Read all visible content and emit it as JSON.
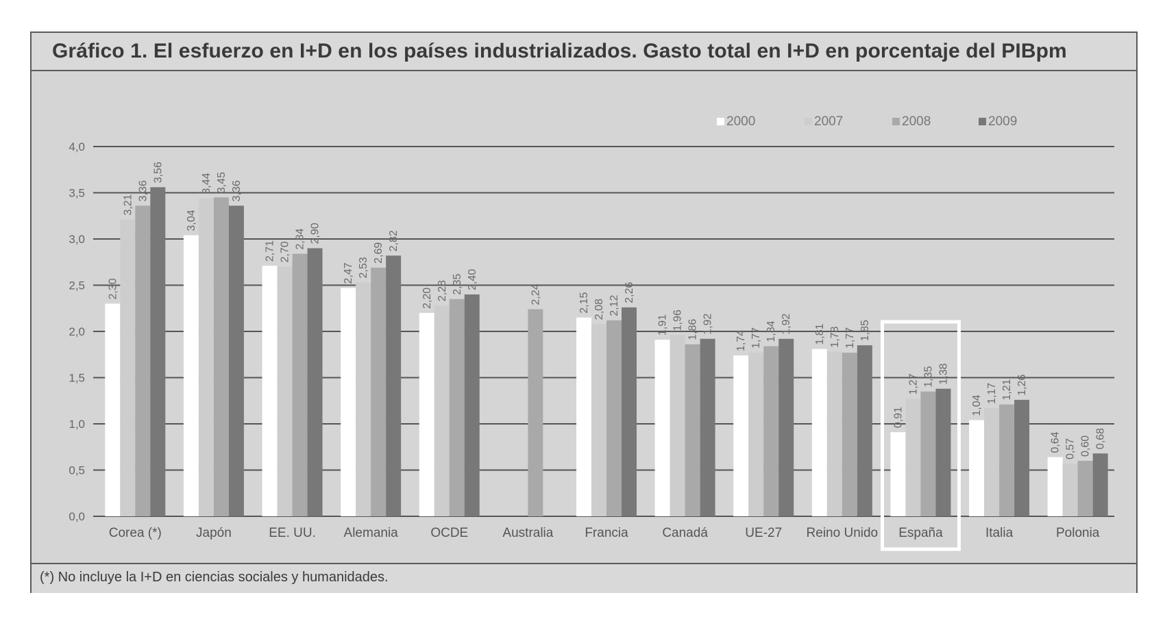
{
  "title": "Gráfico 1. El esfuerzo en I+D en los países industrializados. Gasto total en I+D en porcentaje del PIBpm",
  "footnote": "(*) No incluye la I+D en ciencias sociales y humanidades.",
  "chart_data": {
    "type": "bar",
    "title": "Gráfico 1. El esfuerzo en I+D en los países industrializados. Gasto total en I+D en porcentaje del PIBpm",
    "xlabel": "",
    "ylabel": "",
    "ylim": [
      0,
      4
    ],
    "yticks": [
      "0,0",
      "0,5",
      "1,0",
      "1,5",
      "2,0",
      "2,5",
      "3,0",
      "3,5",
      "4,0"
    ],
    "grid": true,
    "legend": "top-right",
    "categories": [
      "Corea (*)",
      "Japón",
      "EE. UU.",
      "Alemania",
      "OCDE",
      "Australia",
      "Francia",
      "Canadá",
      "UE-27",
      "Reino Unido",
      "España",
      "Italia",
      "Polonia"
    ],
    "highlight_category": "España",
    "series": [
      {
        "name": "2000",
        "color": "#ffffff",
        "values": [
          2.3,
          3.04,
          2.71,
          2.47,
          2.2,
          null,
          2.15,
          1.91,
          1.74,
          1.81,
          0.91,
          1.04,
          0.64
        ],
        "labels": [
          "2,30",
          "3,04",
          "2,71",
          "2,47",
          "2,20",
          "",
          "2,15",
          "1,91",
          "1,74",
          "1,81",
          "0,91",
          "1,04",
          "0,64"
        ]
      },
      {
        "name": "2007",
        "color": "#cdcdcd",
        "values": [
          3.21,
          3.44,
          2.7,
          2.53,
          2.28,
          null,
          2.08,
          1.96,
          1.77,
          1.78,
          1.27,
          1.17,
          0.57
        ],
        "labels": [
          "3,21",
          "3,44",
          "2,70",
          "2,53",
          "2,28",
          "",
          "2,08",
          "1,96",
          "1,77",
          "1,78",
          "1,27",
          "1,17",
          "0,57"
        ]
      },
      {
        "name": "2008",
        "color": "#a9a9a9",
        "values": [
          3.36,
          3.45,
          2.84,
          2.69,
          2.35,
          2.24,
          2.12,
          1.86,
          1.84,
          1.77,
          1.35,
          1.21,
          0.6
        ],
        "labels": [
          "3,36",
          "3,45",
          "2,84",
          "2,69",
          "2,35",
          "2,24",
          "2,12",
          "1,86",
          "1,84",
          "1,77",
          "1,35",
          "1,21",
          "0,60"
        ]
      },
      {
        "name": "2009",
        "color": "#787878",
        "values": [
          3.56,
          3.36,
          2.9,
          2.82,
          2.4,
          null,
          2.26,
          1.92,
          1.92,
          1.85,
          1.38,
          1.26,
          0.68
        ],
        "labels": [
          "3,56",
          "3,36",
          "2,90",
          "2,82",
          "2,40",
          "",
          "2,26",
          "1,92",
          "1,92",
          "1,85",
          "1,38",
          "1,26",
          "0,68"
        ]
      }
    ]
  }
}
